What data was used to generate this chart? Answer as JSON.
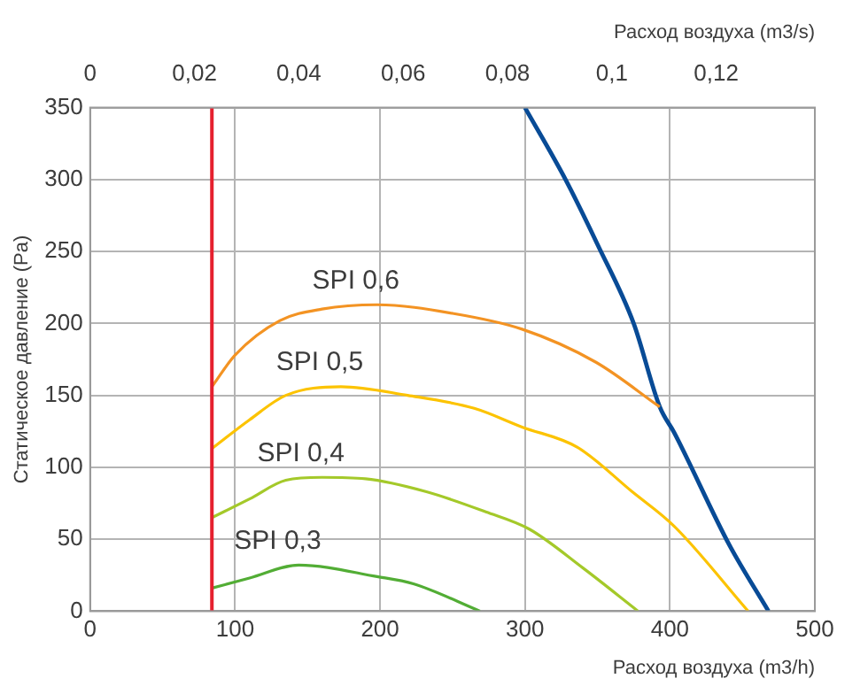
{
  "chart_data": {
    "type": "line",
    "xlabel": "Расход воздуха (m3/h)",
    "ylabel": "Статическое давление (Pa)",
    "x2label": "Расход воздуха (m3/s)",
    "xlim": [
      0,
      500
    ],
    "xticks": [
      0,
      100,
      200,
      300,
      400,
      500
    ],
    "ylim": [
      0,
      350
    ],
    "yticks": [
      0,
      50,
      100,
      150,
      200,
      250,
      300,
      350
    ],
    "x2lim": [
      0,
      0.1389
    ],
    "x2ticks": [
      0,
      {
        "value": 0.02,
        "label": "0,02"
      },
      {
        "value": 0.04,
        "label": "0,04"
      },
      {
        "value": 0.06,
        "label": "0,06"
      },
      {
        "value": 0.08,
        "label": "0,08"
      },
      {
        "value": 0.1,
        "label": "0,1"
      },
      {
        "value": 0.12,
        "label": "0,12"
      }
    ],
    "grid": true,
    "legend": false,
    "marker": "none",
    "line_style": "solid",
    "ref_lines": [
      {
        "axis": "x",
        "value": 84,
        "color": "#e5202e"
      }
    ],
    "series": [
      {
        "name": "SPI 0,6",
        "color": "#f39323",
        "x": [
          84,
          100,
          131,
          160,
          198,
          250,
          298,
          349,
          393
        ],
        "values": [
          156,
          178,
          202,
          210,
          213,
          207,
          196,
          173,
          142
        ]
      },
      {
        "name": "SPI 0,5",
        "color": "#fcc300",
        "x": [
          84,
          110,
          135,
          173,
          219,
          265,
          298,
          336,
          374,
          403,
          454
        ],
        "values": [
          113,
          133,
          150,
          156,
          150,
          141,
          128,
          114,
          83,
          59,
          0
        ]
      },
      {
        "name": "SPI 0,4",
        "color": "#a4c92a",
        "x": [
          84,
          110,
          135,
          160,
          190,
          232,
          273,
          303,
          340,
          378
        ],
        "values": [
          65,
          78,
          91,
          93,
          92,
          83,
          69,
          57,
          30,
          0
        ]
      },
      {
        "name": "SPI 0,3",
        "color": "#52ad35",
        "x": [
          84,
          110,
          144,
          198,
          223,
          269
        ],
        "values": [
          16,
          23,
          32,
          24,
          19,
          0
        ]
      },
      {
        "color": "#084b96",
        "x": [
          300,
          328,
          350,
          375,
          393,
          403,
          441,
          468
        ],
        "values": [
          350,
          300,
          255,
          200,
          142,
          124,
          46,
          0
        ]
      }
    ]
  }
}
